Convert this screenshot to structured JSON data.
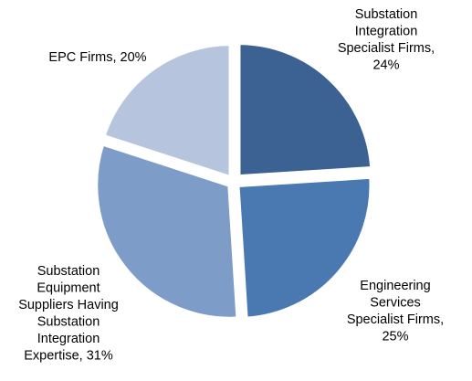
{
  "chart_data": {
    "type": "pie",
    "title": "",
    "start_angle_deg": 0,
    "direction": "clockwise",
    "legend": "none",
    "slices": [
      {
        "label": "Substation Integration Specialist Firms",
        "value": 24,
        "display": [
          "Substation",
          "Integration",
          "Specialist Firms,",
          "24%"
        ],
        "color": "#3c6193"
      },
      {
        "label": "Engineering Services Specialist Firms",
        "value": 25,
        "display": [
          "Engineering",
          "Services",
          "Specialist Firms,",
          "25%"
        ],
        "color": "#4a79b2"
      },
      {
        "label": "Substation Equipment Suppliers Having Substation Integration Expertise",
        "value": 31,
        "display": [
          "Substation",
          "Equipment",
          "Suppliers Having",
          "Substation",
          "Integration",
          "Expertise, 31%"
        ],
        "color": "#7e9cc8"
      },
      {
        "label": "EPC Firms",
        "value": 20,
        "display": [
          "EPC Firms, 20%"
        ],
        "color": "#b6c4de"
      }
    ]
  }
}
